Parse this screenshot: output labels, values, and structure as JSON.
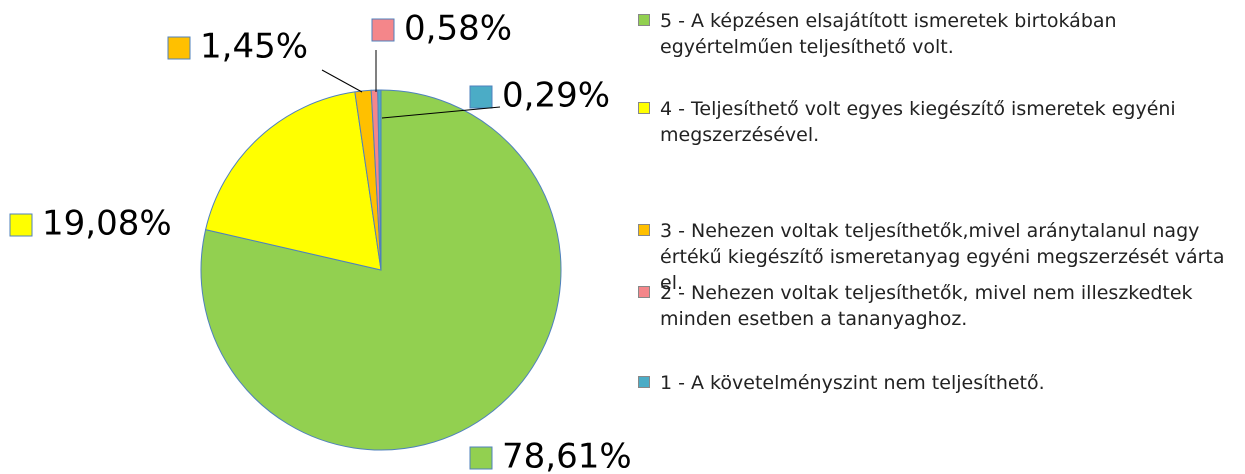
{
  "chart_data": {
    "type": "pie",
    "categories": [
      "5 - A képzésen elsajátított ismeretek birtokában egyértelműen teljesíthető volt.",
      "4 - Teljesíthető volt egyes kiegészítő ismeretek egyéni megszerzésével.",
      "3 - Nehezen voltak teljesíthetők,mivel aránytalanul nagy értékű kiegészítő ismeretanyag egyéni megszerzését várta el.",
      "2 - Nehezen voltak teljesíthetők, mivel nem illeszkedtek minden esetben a tananyaghoz.",
      "1 - A követelményszint nem teljesíthető."
    ],
    "values": [
      78.61,
      19.08,
      1.45,
      0.58,
      0.29
    ],
    "value_labels": [
      "78,61%",
      "19,08%",
      "1,45%",
      "0,58%",
      "0,29%"
    ],
    "colors": [
      "#92d050",
      "#ffff00",
      "#ffc000",
      "#f4868a",
      "#4bacc6"
    ],
    "legend": "right"
  }
}
